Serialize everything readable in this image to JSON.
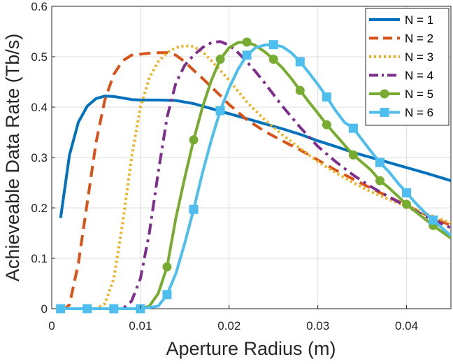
{
  "chart_data": {
    "type": "line",
    "title": "",
    "xlabel": "Aperture Radius (m)",
    "ylabel": "Achieveable Data Rate (Tb/s)",
    "xlim": [
      0,
      0.045
    ],
    "ylim": [
      0,
      0.6
    ],
    "grid": true,
    "legend_position": "top-right",
    "x_ticks": [
      0,
      0.01,
      0.02,
      0.03,
      0.04
    ],
    "x_tick_labels": [
      "0",
      "0.01",
      "0.02",
      "0.03",
      "0.04"
    ],
    "y_ticks": [
      0,
      0.1,
      0.2,
      0.3,
      0.4,
      0.5,
      0.6
    ],
    "y_tick_labels": [
      "0",
      "0.1",
      "0.2",
      "0.3",
      "0.4",
      "0.5",
      "0.6"
    ],
    "series": [
      {
        "name": "N = 1",
        "color": "#0072BD",
        "style": "solid",
        "marker": "none",
        "points": [
          [
            0.001,
            0.18
          ],
          [
            0.002,
            0.305
          ],
          [
            0.003,
            0.37
          ],
          [
            0.004,
            0.402
          ],
          [
            0.005,
            0.417
          ],
          [
            0.006,
            0.422
          ],
          [
            0.007,
            0.421
          ],
          [
            0.008,
            0.418
          ],
          [
            0.009,
            0.415
          ],
          [
            0.01,
            0.414
          ],
          [
            0.012,
            0.414
          ],
          [
            0.014,
            0.413
          ],
          [
            0.016,
            0.407
          ],
          [
            0.018,
            0.397
          ],
          [
            0.02,
            0.387
          ],
          [
            0.022,
            0.377
          ],
          [
            0.024,
            0.367
          ],
          [
            0.026,
            0.357
          ],
          [
            0.028,
            0.346
          ],
          [
            0.03,
            0.333
          ],
          [
            0.032,
            0.322
          ],
          [
            0.034,
            0.31
          ],
          [
            0.036,
            0.3
          ],
          [
            0.038,
            0.29
          ],
          [
            0.04,
            0.28
          ],
          [
            0.042,
            0.27
          ],
          [
            0.045,
            0.254
          ]
        ]
      },
      {
        "name": "N = 2",
        "color": "#D95319",
        "style": "dashed",
        "marker": "none",
        "points": [
          [
            0.001,
            0.0
          ],
          [
            0.0015,
            0.0
          ],
          [
            0.002,
            0.008
          ],
          [
            0.003,
            0.09
          ],
          [
            0.004,
            0.21
          ],
          [
            0.005,
            0.33
          ],
          [
            0.006,
            0.415
          ],
          [
            0.007,
            0.465
          ],
          [
            0.008,
            0.492
          ],
          [
            0.009,
            0.503
          ],
          [
            0.01,
            0.505
          ],
          [
            0.011,
            0.507
          ],
          [
            0.012,
            0.508
          ],
          [
            0.013,
            0.508
          ],
          [
            0.014,
            0.503
          ],
          [
            0.015,
            0.49
          ],
          [
            0.016,
            0.473
          ],
          [
            0.017,
            0.457
          ],
          [
            0.018,
            0.44
          ],
          [
            0.019,
            0.423
          ],
          [
            0.02,
            0.405
          ],
          [
            0.022,
            0.375
          ],
          [
            0.024,
            0.352
          ],
          [
            0.026,
            0.333
          ],
          [
            0.028,
            0.315
          ],
          [
            0.03,
            0.295
          ],
          [
            0.032,
            0.275
          ],
          [
            0.034,
            0.257
          ],
          [
            0.036,
            0.239
          ],
          [
            0.038,
            0.222
          ],
          [
            0.04,
            0.205
          ],
          [
            0.042,
            0.188
          ],
          [
            0.045,
            0.165
          ]
        ]
      },
      {
        "name": "N = 3",
        "color": "#EDB120",
        "style": "dotted",
        "marker": "none",
        "points": [
          [
            0.001,
            0.0
          ],
          [
            0.005,
            0.0
          ],
          [
            0.006,
            0.01
          ],
          [
            0.007,
            0.06
          ],
          [
            0.008,
            0.17
          ],
          [
            0.009,
            0.3
          ],
          [
            0.01,
            0.4
          ],
          [
            0.011,
            0.458
          ],
          [
            0.012,
            0.49
          ],
          [
            0.013,
            0.508
          ],
          [
            0.014,
            0.518
          ],
          [
            0.015,
            0.522
          ],
          [
            0.016,
            0.52
          ],
          [
            0.017,
            0.51
          ],
          [
            0.018,
            0.492
          ],
          [
            0.019,
            0.473
          ],
          [
            0.02,
            0.453
          ],
          [
            0.022,
            0.41
          ],
          [
            0.024,
            0.375
          ],
          [
            0.026,
            0.345
          ],
          [
            0.028,
            0.318
          ],
          [
            0.03,
            0.292
          ],
          [
            0.032,
            0.27
          ],
          [
            0.034,
            0.25
          ],
          [
            0.036,
            0.232
          ],
          [
            0.038,
            0.217
          ],
          [
            0.04,
            0.203
          ],
          [
            0.042,
            0.19
          ],
          [
            0.045,
            0.17
          ]
        ]
      },
      {
        "name": "N = 4",
        "color": "#7E2F8E",
        "style": "dashdot",
        "marker": "none",
        "points": [
          [
            0.001,
            0.0
          ],
          [
            0.008,
            0.0
          ],
          [
            0.009,
            0.015
          ],
          [
            0.01,
            0.06
          ],
          [
            0.011,
            0.15
          ],
          [
            0.012,
            0.27
          ],
          [
            0.013,
            0.38
          ],
          [
            0.014,
            0.448
          ],
          [
            0.015,
            0.483
          ],
          [
            0.016,
            0.503
          ],
          [
            0.017,
            0.518
          ],
          [
            0.018,
            0.528
          ],
          [
            0.019,
            0.53
          ],
          [
            0.02,
            0.523
          ],
          [
            0.021,
            0.508
          ],
          [
            0.022,
            0.49
          ],
          [
            0.023,
            0.47
          ],
          [
            0.024,
            0.448
          ],
          [
            0.025,
            0.425
          ],
          [
            0.026,
            0.402
          ],
          [
            0.028,
            0.36
          ],
          [
            0.03,
            0.322
          ],
          [
            0.032,
            0.292
          ],
          [
            0.034,
            0.265
          ],
          [
            0.036,
            0.242
          ],
          [
            0.038,
            0.222
          ],
          [
            0.04,
            0.203
          ],
          [
            0.042,
            0.185
          ],
          [
            0.045,
            0.16
          ]
        ]
      },
      {
        "name": "N = 5",
        "color": "#77AC30",
        "style": "solid",
        "marker": "circle",
        "points": [
          [
            0.001,
            0.0
          ],
          [
            0.004,
            0.0
          ],
          [
            0.007,
            0.0
          ],
          [
            0.01,
            0.0
          ],
          [
            0.011,
            0.005
          ],
          [
            0.012,
            0.03
          ],
          [
            0.013,
            0.083
          ],
          [
            0.014,
            0.18
          ],
          [
            0.015,
            0.26
          ],
          [
            0.016,
            0.335
          ],
          [
            0.017,
            0.4
          ],
          [
            0.018,
            0.453
          ],
          [
            0.019,
            0.495
          ],
          [
            0.02,
            0.518
          ],
          [
            0.021,
            0.528
          ],
          [
            0.022,
            0.529
          ],
          [
            0.023,
            0.522
          ],
          [
            0.024,
            0.51
          ],
          [
            0.025,
            0.495
          ],
          [
            0.026,
            0.478
          ],
          [
            0.027,
            0.457
          ],
          [
            0.028,
            0.433
          ],
          [
            0.029,
            0.41
          ],
          [
            0.03,
            0.388
          ],
          [
            0.031,
            0.365
          ],
          [
            0.032,
            0.345
          ],
          [
            0.034,
            0.305
          ],
          [
            0.036,
            0.275
          ],
          [
            0.037,
            0.254
          ],
          [
            0.038,
            0.24
          ],
          [
            0.04,
            0.207
          ],
          [
            0.043,
            0.165
          ],
          [
            0.045,
            0.14
          ]
        ]
      },
      {
        "name": "N = 6",
        "color": "#4DBEEE",
        "style": "solid",
        "marker": "square",
        "points": [
          [
            0.001,
            0.0
          ],
          [
            0.004,
            0.0
          ],
          [
            0.007,
            0.0
          ],
          [
            0.01,
            0.0
          ],
          [
            0.012,
            0.005
          ],
          [
            0.013,
            0.028
          ],
          [
            0.014,
            0.07
          ],
          [
            0.015,
            0.13
          ],
          [
            0.016,
            0.197
          ],
          [
            0.017,
            0.27
          ],
          [
            0.018,
            0.335
          ],
          [
            0.019,
            0.393
          ],
          [
            0.02,
            0.438
          ],
          [
            0.021,
            0.475
          ],
          [
            0.022,
            0.503
          ],
          [
            0.023,
            0.518
          ],
          [
            0.024,
            0.523
          ],
          [
            0.025,
            0.524
          ],
          [
            0.026,
            0.52
          ],
          [
            0.027,
            0.508
          ],
          [
            0.028,
            0.49
          ],
          [
            0.029,
            0.468
          ],
          [
            0.03,
            0.445
          ],
          [
            0.031,
            0.42
          ],
          [
            0.032,
            0.393
          ],
          [
            0.033,
            0.37
          ],
          [
            0.034,
            0.358
          ],
          [
            0.035,
            0.335
          ],
          [
            0.036,
            0.312
          ],
          [
            0.037,
            0.29
          ],
          [
            0.038,
            0.272
          ],
          [
            0.039,
            0.25
          ],
          [
            0.04,
            0.23
          ],
          [
            0.041,
            0.21
          ],
          [
            0.042,
            0.192
          ],
          [
            0.043,
            0.176
          ],
          [
            0.044,
            0.16
          ],
          [
            0.045,
            0.145
          ]
        ]
      }
    ],
    "marker_points": {
      "N = 5": [
        [
          0.001,
          0.0
        ],
        [
          0.004,
          0.0
        ],
        [
          0.007,
          0.0
        ],
        [
          0.01,
          0.0
        ],
        [
          0.013,
          0.083
        ],
        [
          0.016,
          0.335
        ],
        [
          0.019,
          0.495
        ],
        [
          0.022,
          0.529
        ],
        [
          0.025,
          0.495
        ],
        [
          0.028,
          0.433
        ],
        [
          0.031,
          0.365
        ],
        [
          0.034,
          0.305
        ],
        [
          0.037,
          0.254
        ],
        [
          0.04,
          0.207
        ],
        [
          0.043,
          0.165
        ]
      ],
      "N = 6": [
        [
          0.001,
          0.0
        ],
        [
          0.004,
          0.0
        ],
        [
          0.007,
          0.0
        ],
        [
          0.01,
          0.0
        ],
        [
          0.013,
          0.028
        ],
        [
          0.016,
          0.197
        ],
        [
          0.019,
          0.393
        ],
        [
          0.022,
          0.503
        ],
        [
          0.025,
          0.524
        ],
        [
          0.028,
          0.49
        ],
        [
          0.031,
          0.42
        ],
        [
          0.034,
          0.358
        ],
        [
          0.037,
          0.29
        ],
        [
          0.04,
          0.23
        ],
        [
          0.043,
          0.176
        ]
      ]
    }
  }
}
